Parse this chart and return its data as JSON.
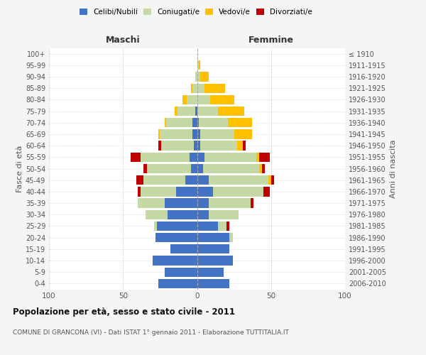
{
  "age_groups": [
    "0-4",
    "5-9",
    "10-14",
    "15-19",
    "20-24",
    "25-29",
    "30-34",
    "35-39",
    "40-44",
    "45-49",
    "50-54",
    "55-59",
    "60-64",
    "65-69",
    "70-74",
    "75-79",
    "80-84",
    "85-89",
    "90-94",
    "95-99",
    "100+"
  ],
  "birth_years": [
    "2006-2010",
    "2001-2005",
    "1996-2000",
    "1991-1995",
    "1986-1990",
    "1981-1985",
    "1976-1980",
    "1971-1975",
    "1966-1970",
    "1961-1965",
    "1956-1960",
    "1951-1955",
    "1946-1950",
    "1941-1945",
    "1936-1940",
    "1931-1935",
    "1926-1930",
    "1921-1925",
    "1916-1920",
    "1911-1915",
    "≤ 1910"
  ],
  "males": {
    "celibi": [
      26,
      22,
      30,
      18,
      28,
      27,
      20,
      22,
      14,
      8,
      4,
      5,
      2,
      3,
      3,
      1,
      0,
      0,
      0,
      0,
      0
    ],
    "coniugati": [
      0,
      0,
      0,
      0,
      0,
      2,
      15,
      18,
      24,
      28,
      30,
      33,
      22,
      22,
      18,
      12,
      7,
      3,
      1,
      0,
      0
    ],
    "vedovi": [
      0,
      0,
      0,
      0,
      0,
      0,
      0,
      0,
      0,
      0,
      0,
      0,
      0,
      1,
      1,
      2,
      3,
      1,
      0,
      0,
      0
    ],
    "divorziati": [
      0,
      0,
      0,
      0,
      0,
      0,
      0,
      0,
      2,
      5,
      2,
      7,
      2,
      0,
      0,
      0,
      0,
      0,
      0,
      0,
      0
    ]
  },
  "females": {
    "nubili": [
      22,
      18,
      24,
      22,
      22,
      14,
      8,
      8,
      11,
      8,
      4,
      5,
      2,
      2,
      1,
      0,
      0,
      0,
      0,
      0,
      0
    ],
    "coniugate": [
      0,
      0,
      0,
      0,
      2,
      6,
      20,
      28,
      34,
      40,
      38,
      35,
      25,
      23,
      20,
      14,
      9,
      5,
      2,
      1,
      0
    ],
    "vedove": [
      0,
      0,
      0,
      0,
      0,
      0,
      0,
      0,
      0,
      2,
      2,
      2,
      4,
      12,
      16,
      18,
      16,
      14,
      6,
      1,
      0
    ],
    "divorziate": [
      0,
      0,
      0,
      0,
      0,
      2,
      0,
      2,
      4,
      2,
      2,
      7,
      2,
      0,
      0,
      0,
      0,
      0,
      0,
      0,
      0
    ]
  },
  "color_celibi": "#4472c4",
  "color_coniugati": "#c5d9a4",
  "color_vedovi": "#ffc000",
  "color_divorziati": "#c00000",
  "title": "Popolazione per età, sesso e stato civile - 2011",
  "subtitle": "COMUNE DI GRANCONA (VI) - Dati ISTAT 1° gennaio 2011 - Elaborazione TUTTITALIA.IT",
  "xlabel_left": "Maschi",
  "xlabel_right": "Femmine",
  "ylabel_left": "Fasce di età",
  "ylabel_right": "Anni di nascita",
  "xlim": 100,
  "bg_color": "#f5f5f5",
  "plot_bg": "#ffffff"
}
